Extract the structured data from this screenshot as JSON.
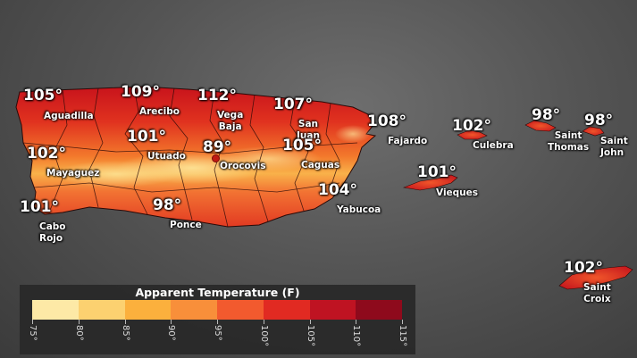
{
  "map": {
    "locations": [
      {
        "temp": "105°",
        "name": "Aguadilla"
      },
      {
        "temp": "109°",
        "name": "Arecibo"
      },
      {
        "temp": "112°",
        "name": "Vega\nBaja"
      },
      {
        "temp": "107°",
        "name": "San\nJuan"
      },
      {
        "temp": "108°",
        "name": "Fajardo"
      },
      {
        "temp": "101°",
        "name": "Utuado"
      },
      {
        "temp": "89°",
        "name": "Orocovis"
      },
      {
        "temp": "105°",
        "name": "Caguas"
      },
      {
        "temp": "102°",
        "name": "Mayaguez"
      },
      {
        "temp": "104°",
        "name": "Yabucoa"
      },
      {
        "temp": "101°",
        "name": "Cabo\nRojo"
      },
      {
        "temp": "98°",
        "name": "Ponce"
      },
      {
        "temp": "102°",
        "name": "Culebra"
      },
      {
        "temp": "101°",
        "name": "Vieques"
      },
      {
        "temp": "98°",
        "name": "Saint\nThomas"
      },
      {
        "temp": "98°",
        "name": "Saint\nJohn"
      },
      {
        "temp": "102°",
        "name": "Saint\nCroix"
      }
    ]
  },
  "legend": {
    "title": "Apparent Temperature (F)",
    "ticks": [
      "75°",
      "80°",
      "85°",
      "90°",
      "95°",
      "100°",
      "105°",
      "110°",
      "115°"
    ],
    "colors": [
      "#fde9a6",
      "#fcd170",
      "#fbb03d",
      "#f88f3a",
      "#f25a2e",
      "#e12a22",
      "#bf1322",
      "#8e0a1c"
    ]
  }
}
